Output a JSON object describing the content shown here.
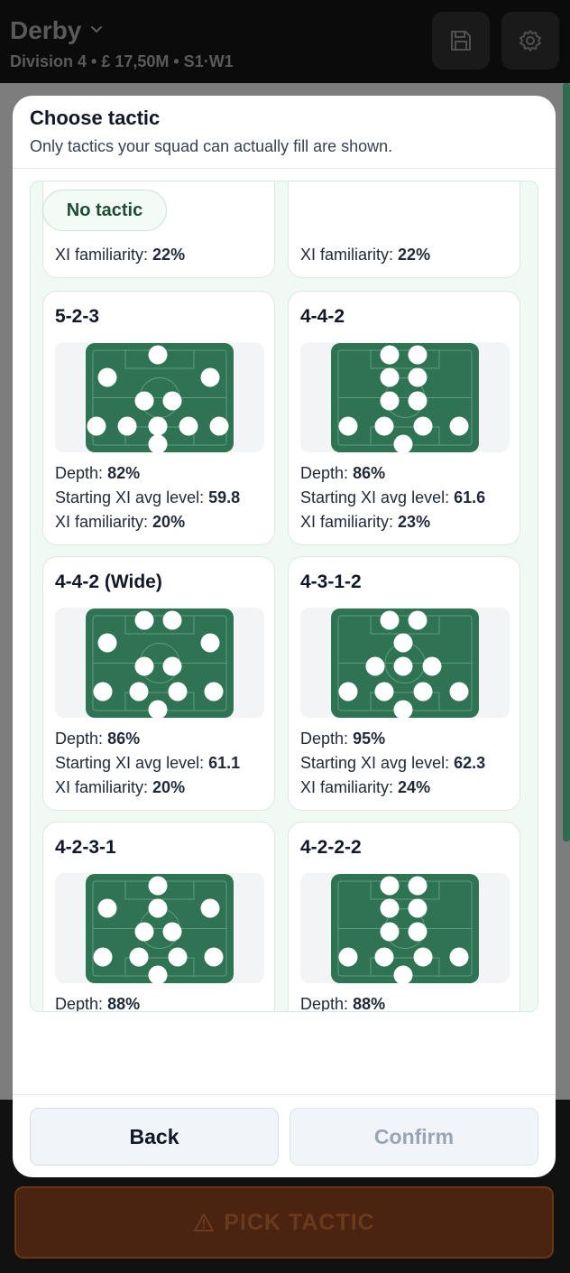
{
  "header": {
    "club_name": "Derby",
    "subtitle": "Division 4 • £ 17,50M • S1·W1",
    "save_icon": "save-icon",
    "settings_icon": "gear-icon"
  },
  "modal": {
    "title": "Choose tactic",
    "subtitle": "Only tactics your squad can actually fill are shown.",
    "no_tactic_label": "No tactic",
    "back_label": "Back",
    "confirm_label": "Confirm"
  },
  "labels": {
    "depth": "Depth:",
    "avg_level": "Starting XI avg level:",
    "familiarity": "XI familiarity:"
  },
  "partial_cards": [
    {
      "familiarity": "22%"
    },
    {
      "familiarity": "22%"
    }
  ],
  "tactics": [
    {
      "name": "5-2-3",
      "depth": "82%",
      "avg_level": "59.8",
      "familiarity": "20%"
    },
    {
      "name": "4-4-2",
      "depth": "86%",
      "avg_level": "61.6",
      "familiarity": "23%"
    },
    {
      "name": "4-4-2 (Wide)",
      "depth": "86%",
      "avg_level": "61.1",
      "familiarity": "20%"
    },
    {
      "name": "4-3-1-2",
      "depth": "95%",
      "avg_level": "62.3",
      "familiarity": "24%"
    },
    {
      "name": "4-2-3-1",
      "depth": "88%",
      "avg_level": "",
      "familiarity": ""
    },
    {
      "name": "4-2-2-2",
      "depth": "88%",
      "avg_level": "",
      "familiarity": ""
    }
  ],
  "bottom_bar": {
    "pick_tactic_label": "PICK TACTIC",
    "pick_icon": "warning-icon"
  },
  "colors": {
    "pitch": "#2e7452",
    "list_bg": "#f0faf4",
    "pick_button": "#4a2410"
  }
}
